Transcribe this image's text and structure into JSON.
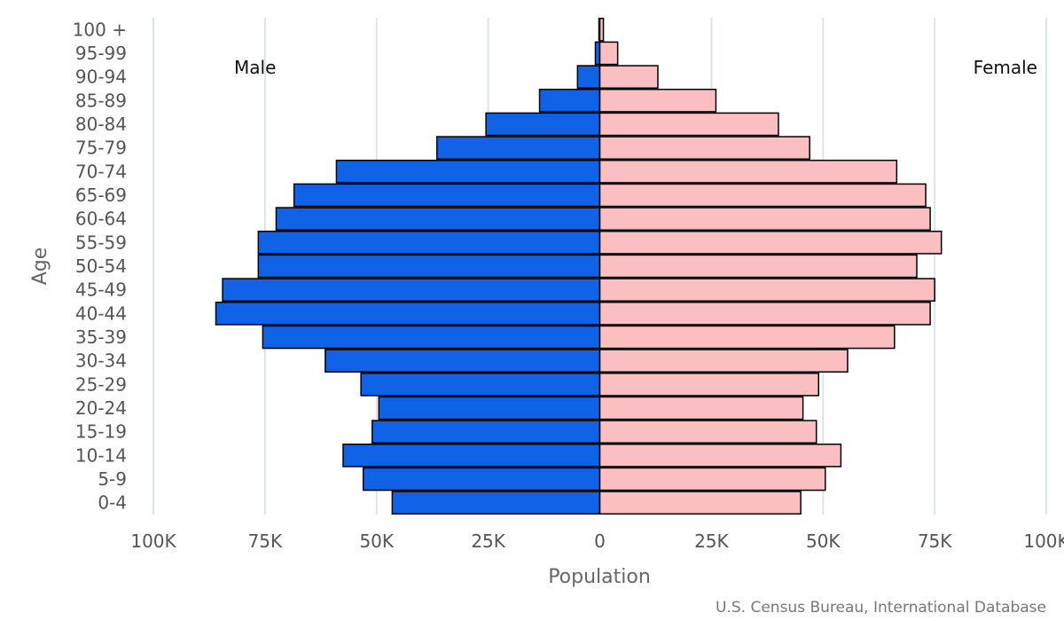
{
  "chart_data": {
    "type": "bar",
    "orientation": "horizontal-pyramid",
    "title": "",
    "xlabel": "Population",
    "ylabel": "Age",
    "xlim": [
      -100000,
      100000
    ],
    "x_ticks": [
      -100000,
      -75000,
      -50000,
      -25000,
      0,
      25000,
      50000,
      75000,
      100000
    ],
    "x_tick_labels": [
      "100K",
      "75K",
      "50K",
      "25K",
      "0",
      "25K",
      "50K",
      "75K",
      "100K"
    ],
    "grid": true,
    "categories": [
      "0-4",
      "5-9",
      "10-14",
      "15-19",
      "20-24",
      "25-29",
      "30-34",
      "35-39",
      "40-44",
      "45-49",
      "50-54",
      "55-59",
      "60-64",
      "65-69",
      "70-74",
      "75-79",
      "80-84",
      "85-89",
      "90-94",
      "95-99",
      "100 +"
    ],
    "series": [
      {
        "name": "Male",
        "color": "#1062e6",
        "values": [
          46500,
          53000,
          57500,
          51000,
          49500,
          53500,
          61500,
          75500,
          86000,
          84500,
          76500,
          76500,
          72500,
          68500,
          59000,
          36500,
          25500,
          13500,
          5000,
          1000,
          200
        ]
      },
      {
        "name": "Female",
        "color": "#fbbfc1",
        "values": [
          45000,
          50500,
          54000,
          48500,
          45500,
          49000,
          55500,
          66000,
          74000,
          75000,
          71000,
          76500,
          74000,
          73000,
          66500,
          47000,
          40000,
          26000,
          13000,
          4000,
          800
        ]
      }
    ],
    "annotations": {
      "left": "Male",
      "right": "Female"
    },
    "credit": "U.S. Census Bureau, International Database"
  }
}
